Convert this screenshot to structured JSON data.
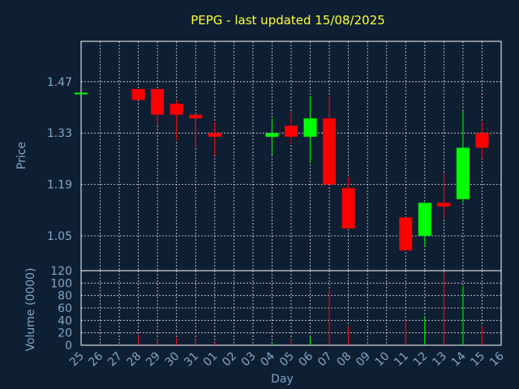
{
  "chart_data": {
    "type": "candlestick",
    "title": "PEPG - last updated 15/08/2025",
    "xlabel": "Day",
    "ylabel": "Price",
    "volume_label": "Volume (0000)",
    "x_ticks": [
      "25",
      "26",
      "27",
      "28",
      "29",
      "30",
      "31",
      "01",
      "02",
      "03",
      "04",
      "05",
      "06",
      "07",
      "08",
      "09",
      "10",
      "11",
      "12",
      "13",
      "14",
      "15",
      "16"
    ],
    "price_ticks": [
      1.05,
      1.19,
      1.33,
      1.47
    ],
    "price_ylim": [
      0.955,
      1.58
    ],
    "volume_ticks": [
      0,
      20,
      40,
      60,
      80,
      100,
      120
    ],
    "volume_ylim": [
      0,
      120
    ],
    "grid": true,
    "colors": {
      "up": "#00ff00",
      "down": "#ff0000",
      "background": "#0f1f33",
      "title": "#ffff33",
      "text": "#7fa6c8",
      "grid": "#ffffff"
    },
    "candles": [
      {
        "day": "25",
        "open": 1.44,
        "high": 1.44,
        "low": 1.44,
        "close": 1.44,
        "volume": 0.5
      },
      {
        "day": "28",
        "open": 1.45,
        "high": 1.45,
        "low": 1.42,
        "close": 1.42,
        "volume": 17
      },
      {
        "day": "29",
        "open": 1.45,
        "high": 1.45,
        "low": 1.35,
        "close": 1.38,
        "volume": 10
      },
      {
        "day": "30",
        "open": 1.41,
        "high": 1.42,
        "low": 1.31,
        "close": 1.38,
        "volume": 12
      },
      {
        "day": "31",
        "open": 1.38,
        "high": 1.38,
        "low": 1.29,
        "close": 1.37,
        "volume": 12
      },
      {
        "day": "01",
        "open": 1.33,
        "high": 1.36,
        "low": 1.27,
        "close": 1.32,
        "volume": 4
      },
      {
        "day": "04",
        "open": 1.32,
        "high": 1.37,
        "low": 1.27,
        "close": 1.33,
        "volume": 4
      },
      {
        "day": "05",
        "open": 1.35,
        "high": 1.39,
        "low": 1.3,
        "close": 1.32,
        "volume": 10
      },
      {
        "day": "06",
        "open": 1.32,
        "high": 1.43,
        "low": 1.25,
        "close": 1.37,
        "volume": 13
      },
      {
        "day": "07",
        "open": 1.37,
        "high": 1.43,
        "low": 1.19,
        "close": 1.19,
        "volume": 90
      },
      {
        "day": "08",
        "open": 1.18,
        "high": 1.21,
        "low": 1.07,
        "close": 1.07,
        "volume": 31
      },
      {
        "day": "11",
        "open": 1.1,
        "high": 1.1,
        "low": 1.01,
        "close": 1.01,
        "volume": 40
      },
      {
        "day": "12",
        "open": 1.05,
        "high": 1.14,
        "low": 1.02,
        "close": 1.14,
        "volume": 47
      },
      {
        "day": "13",
        "open": 1.14,
        "high": 1.22,
        "low": 1.1,
        "close": 1.13,
        "volume": 118
      },
      {
        "day": "14",
        "open": 1.15,
        "high": 1.39,
        "low": 1.14,
        "close": 1.29,
        "volume": 95
      },
      {
        "day": "15",
        "open": 1.33,
        "high": 1.36,
        "low": 1.26,
        "close": 1.29,
        "volume": 32
      }
    ]
  }
}
